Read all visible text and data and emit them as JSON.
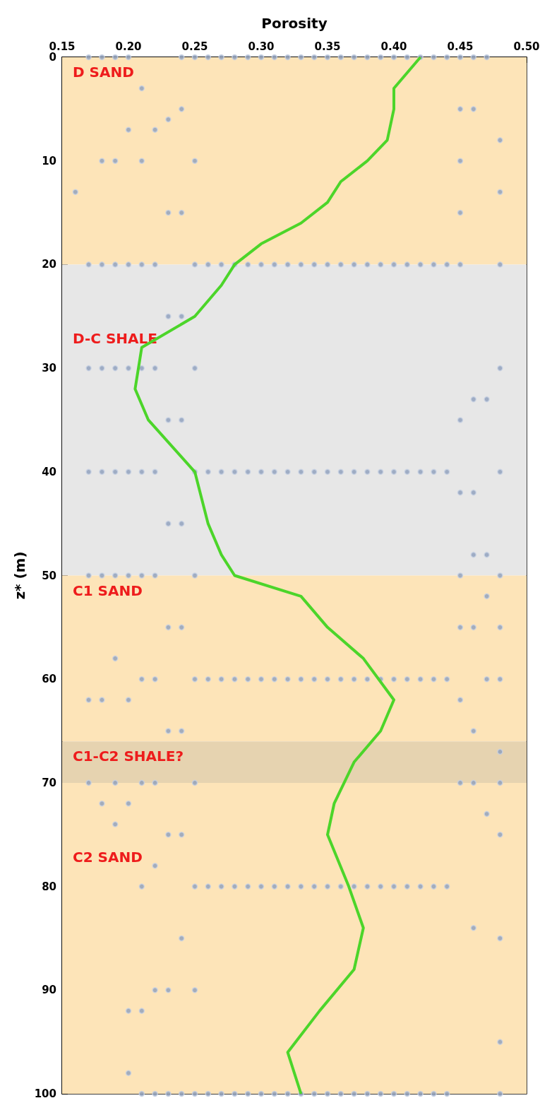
{
  "chart_data": {
    "type": "scatter",
    "xlabel": "Porosity",
    "ylabel": "z* (m)",
    "xlim": [
      0.15,
      0.5
    ],
    "xticks": [
      0.15,
      {
        "value": 0.2,
        "label": "0.20"
      },
      0.25,
      {
        "value": 0.3,
        "label": "0.30"
      },
      0.35,
      {
        "value": 0.4,
        "label": "0.40"
      },
      0.45,
      {
        "value": 0.5,
        "label": "0.50"
      }
    ],
    "ylim": [
      100,
      0
    ],
    "yticks": [
      0,
      10,
      20,
      30,
      40,
      50,
      60,
      70,
      80,
      90,
      100
    ],
    "bands": [
      {
        "axis": "y",
        "from": 0,
        "to": 20,
        "label": "D SAND",
        "color": "#fde4b8"
      },
      {
        "axis": "y",
        "from": 20,
        "to": 50,
        "label": "D-C SHALE",
        "color": "#e7e7e7"
      },
      {
        "axis": "y",
        "from": 50,
        "to": 66,
        "label": "C1 SAND",
        "color": "#fde4b8"
      },
      {
        "axis": "y",
        "from": 66,
        "to": 70,
        "label": "C1-C2 SHALE?",
        "color": "#e6d3b0"
      },
      {
        "axis": "y",
        "from": 70,
        "to": 100,
        "label": "C2 SAND",
        "color": "#fde4b8"
      }
    ],
    "series": [
      {
        "color": "#8c9dbb",
        "marker": "circle",
        "x": [
          0.16,
          0.17,
          0.17,
          0.17,
          0.17,
          0.17,
          0.17,
          0.17,
          0.18,
          0.18,
          0.18,
          0.18,
          0.18,
          0.18,
          0.18,
          0.18,
          0.19,
          0.19,
          0.19,
          0.19,
          0.19,
          0.19,
          0.19,
          0.19,
          0.19,
          0.2,
          0.2,
          0.2,
          0.2,
          0.2,
          0.2,
          0.2,
          0.2,
          0.2,
          0.2,
          0.21,
          0.21,
          0.21,
          0.21,
          0.21,
          0.21,
          0.21,
          0.21,
          0.21,
          0.21,
          0.21,
          0.22,
          0.22,
          0.22,
          0.22,
          0.22,
          0.22,
          0.22,
          0.22,
          0.22,
          0.22,
          0.23,
          0.23,
          0.23,
          0.23,
          0.23,
          0.23,
          0.23,
          0.23,
          0.23,
          0.23,
          0.24,
          0.24,
          0.24,
          0.24,
          0.24,
          0.24,
          0.24,
          0.24,
          0.24,
          0.24,
          0.24,
          0.25,
          0.25,
          0.25,
          0.25,
          0.25,
          0.25,
          0.25,
          0.25,
          0.25,
          0.25,
          0.25,
          0.26,
          0.26,
          0.26,
          0.26,
          0.26,
          0.26,
          0.27,
          0.27,
          0.27,
          0.27,
          0.27,
          0.27,
          0.28,
          0.28,
          0.28,
          0.28,
          0.28,
          0.28,
          0.29,
          0.29,
          0.29,
          0.29,
          0.29,
          0.29,
          0.3,
          0.3,
          0.3,
          0.3,
          0.3,
          0.3,
          0.31,
          0.31,
          0.31,
          0.31,
          0.31,
          0.31,
          0.32,
          0.32,
          0.32,
          0.32,
          0.32,
          0.32,
          0.33,
          0.33,
          0.33,
          0.33,
          0.33,
          0.33,
          0.34,
          0.34,
          0.34,
          0.34,
          0.34,
          0.34,
          0.35,
          0.35,
          0.35,
          0.35,
          0.35,
          0.35,
          0.36,
          0.36,
          0.36,
          0.36,
          0.36,
          0.36,
          0.37,
          0.37,
          0.37,
          0.37,
          0.37,
          0.37,
          0.38,
          0.38,
          0.38,
          0.38,
          0.38,
          0.38,
          0.39,
          0.39,
          0.39,
          0.39,
          0.39,
          0.39,
          0.4,
          0.4,
          0.4,
          0.4,
          0.4,
          0.4,
          0.41,
          0.41,
          0.41,
          0.41,
          0.41,
          0.41,
          0.42,
          0.42,
          0.42,
          0.42,
          0.42,
          0.42,
          0.43,
          0.43,
          0.43,
          0.43,
          0.43,
          0.43,
          0.44,
          0.44,
          0.44,
          0.44,
          0.44,
          0.44,
          0.45,
          0.45,
          0.45,
          0.45,
          0.45,
          0.45,
          0.45,
          0.45,
          0.45,
          0.45,
          0.45,
          0.46,
          0.46,
          0.46,
          0.46,
          0.46,
          0.46,
          0.46,
          0.46,
          0.46,
          0.47,
          0.47,
          0.47,
          0.47,
          0.47,
          0.47,
          0.48,
          0.48,
          0.48,
          0.48,
          0.48,
          0.48,
          0.48,
          0.48,
          0.48,
          0.48,
          0.48,
          0.48,
          0.48,
          0.48
        ],
        "values": [
          13,
          0,
          20,
          30,
          40,
          50,
          62,
          70,
          0,
          10,
          20,
          30,
          40,
          50,
          62,
          72,
          0,
          10,
          20,
          30,
          40,
          50,
          58,
          70,
          74,
          0,
          7,
          20,
          30,
          40,
          50,
          62,
          72,
          92,
          98,
          3,
          10,
          20,
          30,
          40,
          50,
          60,
          70,
          80,
          92,
          100,
          7,
          20,
          30,
          40,
          50,
          60,
          70,
          78,
          90,
          100,
          6,
          15,
          25,
          35,
          45,
          55,
          65,
          75,
          90,
          100,
          0,
          5,
          15,
          25,
          35,
          45,
          55,
          65,
          75,
          85,
          100,
          0,
          10,
          20,
          30,
          40,
          50,
          60,
          70,
          80,
          90,
          100,
          0,
          20,
          40,
          60,
          80,
          100,
          0,
          20,
          40,
          60,
          80,
          100,
          0,
          20,
          40,
          60,
          80,
          100,
          0,
          20,
          40,
          60,
          80,
          100,
          0,
          20,
          40,
          60,
          80,
          100,
          0,
          20,
          40,
          60,
          80,
          100,
          0,
          20,
          40,
          60,
          80,
          100,
          0,
          20,
          40,
          60,
          80,
          100,
          0,
          20,
          40,
          60,
          80,
          100,
          0,
          20,
          40,
          60,
          80,
          100,
          0,
          20,
          40,
          60,
          80,
          100,
          0,
          20,
          40,
          60,
          80,
          100,
          0,
          20,
          40,
          60,
          80,
          100,
          0,
          20,
          40,
          60,
          80,
          100,
          0,
          20,
          40,
          60,
          80,
          100,
          0,
          20,
          40,
          60,
          80,
          100,
          0,
          20,
          40,
          60,
          80,
          100,
          0,
          20,
          40,
          60,
          80,
          100,
          0,
          20,
          40,
          60,
          80,
          100,
          0,
          5,
          10,
          15,
          20,
          35,
          42,
          50,
          55,
          62,
          70,
          0,
          5,
          33,
          42,
          48,
          55,
          65,
          70,
          84,
          0,
          33,
          48,
          52,
          60,
          73,
          8,
          13,
          20,
          30,
          40,
          50,
          55,
          60,
          67,
          70,
          75,
          85,
          95,
          100
        ]
      },
      {
        "type": "line",
        "color": "#4cd52a",
        "marker": "none",
        "line_style": "solid",
        "x": [
          0.42,
          0.4,
          0.4,
          0.395,
          0.38,
          0.36,
          0.35,
          0.33,
          0.3,
          0.28,
          0.27,
          0.25,
          0.21,
          0.205,
          0.215,
          0.25,
          0.26,
          0.27,
          0.28,
          0.33,
          0.35,
          0.377,
          0.4,
          0.39,
          0.37,
          0.355,
          0.35,
          0.366,
          0.377,
          0.37,
          0.344,
          0.32,
          0.33
        ],
        "values": [
          0,
          3,
          5,
          8,
          10,
          12,
          14,
          16,
          18,
          20,
          22,
          25,
          28,
          32,
          35,
          40,
          45,
          48,
          50,
          52,
          55,
          58,
          62,
          65,
          68,
          72,
          75,
          80,
          84,
          88,
          92,
          96,
          100
        ]
      }
    ]
  }
}
